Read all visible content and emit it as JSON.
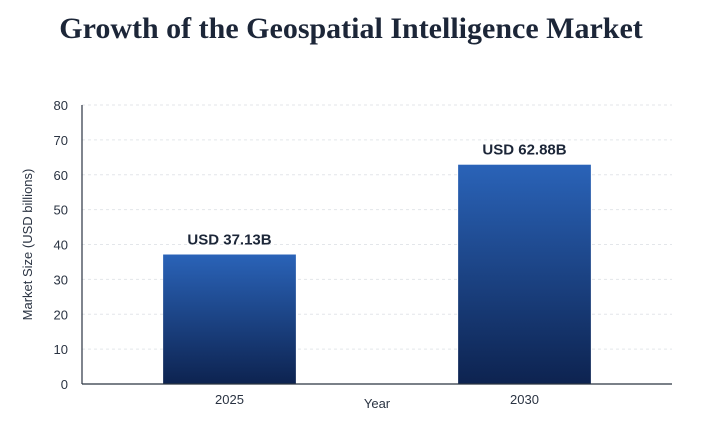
{
  "chart_data": {
    "type": "bar",
    "title": "Growth of the Geospatial Intelligence Market",
    "xlabel": "Year",
    "ylabel": "Market Size (USD billions)",
    "categories": [
      "2025",
      "2030"
    ],
    "values": [
      37.13,
      62.88
    ],
    "data_labels": [
      "USD 37.13B",
      "USD 62.88B"
    ],
    "ylim": [
      0,
      80
    ],
    "yticks": [
      0,
      10,
      20,
      30,
      40,
      50,
      60,
      70,
      80
    ],
    "grid": true,
    "legend": "none",
    "colors": {
      "bar_top": "#2a63b8",
      "bar_bottom": "#0d2350",
      "grid": "#e3e6ea",
      "axis": "#2b3442"
    }
  }
}
